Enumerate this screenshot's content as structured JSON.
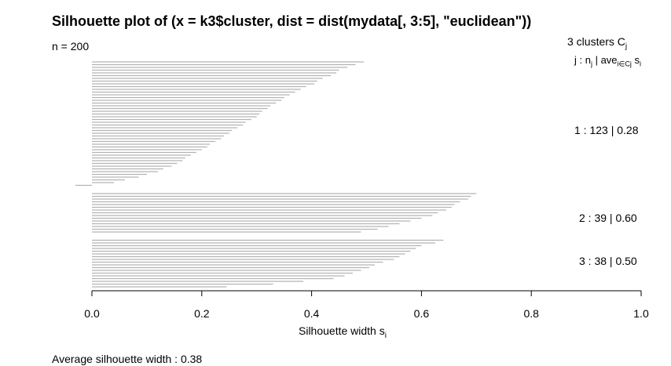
{
  "title": "Silhouette plot of (x = k3$cluster, dist = dist(mydata[, 3:5], \"euclidean\"))",
  "n_label": "n = 200",
  "legend": {
    "clusters_header": "3  clusters  C",
    "clusters_header_sub": "j",
    "sub_j": "j :  n",
    "sub_nj_sub": "j",
    "sub_mid": " | ave",
    "sub_ave_sub": "i∈Cj",
    "sub_si": "  s",
    "sub_si_sub": "i"
  },
  "average_label": "Average silhouette width :  0.38",
  "chart_data": {
    "type": "bar",
    "orientation": "horizontal",
    "xlabel": "Silhouette width s",
    "xlabel_sub": "i",
    "xlim": [
      0,
      1
    ],
    "xticks": [
      "0.0",
      "0.2",
      "0.4",
      "0.6",
      "0.8",
      "1.0"
    ],
    "bar_color": "#b3b3b3",
    "clusters": [
      {
        "id": 1,
        "size": 123,
        "avg_width": 0.28,
        "label": "1 :   123  |  0.28",
        "values": [
          0.495,
          0.48,
          0.465,
          0.45,
          0.445,
          0.435,
          0.42,
          0.41,
          0.405,
          0.39,
          0.38,
          0.37,
          0.36,
          0.35,
          0.345,
          0.335,
          0.325,
          0.32,
          0.31,
          0.305,
          0.3,
          0.29,
          0.28,
          0.275,
          0.265,
          0.255,
          0.25,
          0.24,
          0.235,
          0.225,
          0.215,
          0.21,
          0.2,
          0.19,
          0.18,
          0.17,
          0.165,
          0.155,
          0.145,
          0.13,
          0.12,
          0.1,
          0.085,
          0.06,
          0.04,
          -0.03
        ]
      },
      {
        "id": 2,
        "size": 39,
        "avg_width": 0.6,
        "label": "2 :   39  |  0.60",
        "values": [
          0.7,
          0.69,
          0.685,
          0.67,
          0.66,
          0.655,
          0.645,
          0.63,
          0.62,
          0.6,
          0.58,
          0.56,
          0.54,
          0.52,
          0.49
        ]
      },
      {
        "id": 3,
        "size": 38,
        "avg_width": 0.5,
        "label": "3 :   38  |  0.50",
        "values": [
          0.64,
          0.625,
          0.6,
          0.59,
          0.58,
          0.57,
          0.56,
          0.55,
          0.53,
          0.515,
          0.505,
          0.49,
          0.475,
          0.46,
          0.44,
          0.385,
          0.33,
          0.245
        ]
      }
    ]
  }
}
